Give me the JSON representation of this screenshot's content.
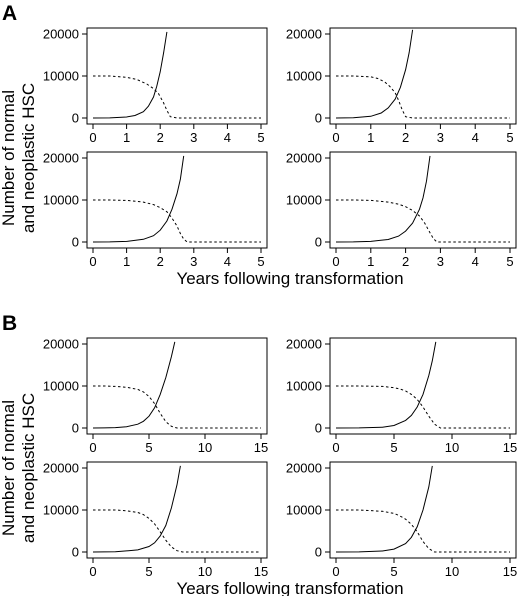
{
  "figure": {
    "panels": [
      {
        "letter": "A",
        "ylabel_lines": [
          "Number of normal",
          "and neoplastic HSC"
        ],
        "xlabel": "Years following transformation"
      },
      {
        "letter": "B",
        "ylabel_lines": [
          "Number of normal",
          "and neoplastic HSC"
        ],
        "xlabel": "Years following transformation"
      }
    ]
  },
  "chart_data": [
    {
      "type": "line",
      "group": "A",
      "xlim": [
        0,
        5
      ],
      "ylim": [
        0,
        20000
      ],
      "x_ticks": [
        0,
        1,
        2,
        3,
        4,
        5
      ],
      "y_ticks": [
        0,
        10000,
        20000
      ],
      "series": [
        {
          "style": "solid",
          "x": [
            0,
            0.5,
            1,
            1.25,
            1.5,
            1.65,
            1.8,
            1.9,
            2.0,
            2.1,
            2.2
          ],
          "y": [
            0,
            30,
            250,
            600,
            1500,
            2800,
            5000,
            7600,
            11000,
            15500,
            20500
          ]
        },
        {
          "style": "dashed",
          "x": [
            0,
            0.5,
            1.0,
            1.3,
            1.6,
            1.8,
            1.95,
            2.1,
            2.2,
            2.3,
            2.5,
            5
          ],
          "y": [
            10000,
            10000,
            9700,
            9200,
            8100,
            7000,
            5800,
            3600,
            1800,
            300,
            0,
            0
          ]
        }
      ]
    },
    {
      "type": "line",
      "group": "A",
      "xlim": [
        0,
        5
      ],
      "ylim": [
        0,
        20000
      ],
      "x_ticks": [
        0,
        1,
        2,
        3,
        4,
        5
      ],
      "y_ticks": [
        0,
        10000,
        20000
      ],
      "series": [
        {
          "style": "solid",
          "x": [
            0,
            0.5,
            1,
            1.3,
            1.5,
            1.7,
            1.85,
            2.0,
            2.1,
            2.2
          ],
          "y": [
            0,
            50,
            400,
            1200,
            2400,
            4500,
            7300,
            11500,
            15500,
            21000
          ]
        },
        {
          "style": "dashed",
          "x": [
            0,
            0.5,
            1.0,
            1.2,
            1.4,
            1.55,
            1.7,
            1.8,
            1.9,
            2.0,
            2.2,
            5
          ],
          "y": [
            10000,
            10000,
            9800,
            9400,
            8600,
            7500,
            6000,
            4200,
            2000,
            300,
            0,
            0
          ]
        }
      ]
    },
    {
      "type": "line",
      "group": "A",
      "xlim": [
        0,
        5
      ],
      "ylim": [
        0,
        20000
      ],
      "x_ticks": [
        0,
        1,
        2,
        3,
        4,
        5
      ],
      "y_ticks": [
        0,
        10000,
        20000
      ],
      "series": [
        {
          "style": "solid",
          "x": [
            0,
            0.5,
            1,
            1.5,
            1.8,
            2.0,
            2.2,
            2.35,
            2.5,
            2.6,
            2.7
          ],
          "y": [
            0,
            20,
            150,
            650,
            1500,
            2800,
            5000,
            7800,
            11500,
            15000,
            20500
          ]
        },
        {
          "style": "dashed",
          "x": [
            0,
            0.5,
            1.0,
            1.5,
            1.8,
            2.0,
            2.2,
            2.35,
            2.5,
            2.6,
            2.7,
            2.8,
            5
          ],
          "y": [
            10000,
            10000,
            9900,
            9500,
            8900,
            8200,
            7200,
            5700,
            3800,
            2000,
            700,
            0,
            0
          ]
        }
      ]
    },
    {
      "type": "line",
      "group": "A",
      "xlim": [
        0,
        5
      ],
      "ylim": [
        0,
        20000
      ],
      "x_ticks": [
        0,
        1,
        2,
        3,
        4,
        5
      ],
      "y_ticks": [
        0,
        10000,
        20000
      ],
      "series": [
        {
          "style": "solid",
          "x": [
            0,
            0.5,
            1,
            1.5,
            1.8,
            2.0,
            2.2,
            2.4,
            2.5,
            2.6,
            2.7
          ],
          "y": [
            0,
            20,
            150,
            600,
            1400,
            2600,
            4500,
            7800,
            10500,
            14500,
            20500
          ]
        },
        {
          "style": "dashed",
          "x": [
            0,
            0.5,
            1.0,
            1.5,
            1.8,
            2.0,
            2.2,
            2.4,
            2.55,
            2.7,
            2.8,
            2.9,
            5
          ],
          "y": [
            10000,
            10000,
            9900,
            9500,
            9000,
            8400,
            7500,
            6200,
            4500,
            2200,
            800,
            0,
            0
          ]
        }
      ]
    },
    {
      "type": "line",
      "group": "B",
      "xlim": [
        0,
        15
      ],
      "ylim": [
        0,
        20000
      ],
      "x_ticks": [
        0,
        5,
        10,
        15
      ],
      "y_ticks": [
        0,
        10000,
        20000
      ],
      "series": [
        {
          "style": "solid",
          "x": [
            0,
            1,
            2,
            3,
            4,
            4.5,
            5,
            5.5,
            6,
            6.5,
            7,
            7.3
          ],
          "y": [
            0,
            20,
            100,
            300,
            900,
            1600,
            2800,
            4800,
            8000,
            12000,
            17000,
            20500
          ]
        },
        {
          "style": "dashed",
          "x": [
            0,
            1,
            2,
            3,
            4,
            4.5,
            5,
            5.5,
            6,
            6.5,
            7,
            7.5,
            15
          ],
          "y": [
            10000,
            10000,
            9900,
            9700,
            9200,
            8600,
            7500,
            5800,
            3500,
            1500,
            400,
            0,
            0
          ]
        }
      ]
    },
    {
      "type": "line",
      "group": "B",
      "xlim": [
        0,
        15
      ],
      "ylim": [
        0,
        20000
      ],
      "x_ticks": [
        0,
        5,
        10,
        15
      ],
      "y_ticks": [
        0,
        10000,
        20000
      ],
      "series": [
        {
          "style": "solid",
          "x": [
            0,
            2,
            4,
            5,
            6,
            6.5,
            7,
            7.5,
            8,
            8.3,
            8.6
          ],
          "y": [
            0,
            30,
            200,
            600,
            1800,
            3000,
            5000,
            8000,
            12500,
            16000,
            20500
          ]
        },
        {
          "style": "dashed",
          "x": [
            0,
            2,
            4,
            5,
            5.5,
            6,
            6.5,
            7,
            7.5,
            8,
            8.5,
            9,
            15
          ],
          "y": [
            10000,
            10000,
            9900,
            9600,
            9300,
            8800,
            8000,
            6800,
            5000,
            2800,
            900,
            0,
            0
          ]
        }
      ]
    },
    {
      "type": "line",
      "group": "B",
      "xlim": [
        0,
        15
      ],
      "ylim": [
        0,
        20000
      ],
      "x_ticks": [
        0,
        5,
        10,
        15
      ],
      "y_ticks": [
        0,
        10000,
        20000
      ],
      "series": [
        {
          "style": "solid",
          "x": [
            0,
            2,
            4,
            5,
            5.5,
            6,
            6.5,
            7,
            7.5,
            7.8
          ],
          "y": [
            0,
            40,
            500,
            1300,
            2200,
            3800,
            6300,
            10500,
            16000,
            20500
          ]
        },
        {
          "style": "dashed",
          "x": [
            0,
            2,
            3,
            4,
            4.5,
            5,
            5.5,
            6,
            6.5,
            7,
            7.5,
            8,
            15
          ],
          "y": [
            10000,
            10000,
            9800,
            9400,
            8900,
            8000,
            6700,
            4800,
            2800,
            1200,
            300,
            0,
            0
          ]
        }
      ]
    },
    {
      "type": "line",
      "group": "B",
      "xlim": [
        0,
        15
      ],
      "ylim": [
        0,
        20000
      ],
      "x_ticks": [
        0,
        5,
        10,
        15
      ],
      "y_ticks": [
        0,
        10000,
        20000
      ],
      "series": [
        {
          "style": "solid",
          "x": [
            0,
            2,
            4,
            5,
            6,
            6.5,
            7,
            7.5,
            8,
            8.3
          ],
          "y": [
            0,
            30,
            250,
            700,
            2000,
            3500,
            6000,
            10000,
            15500,
            20500
          ]
        },
        {
          "style": "dashed",
          "x": [
            0,
            2,
            4,
            5,
            5.5,
            6,
            6.5,
            7,
            7.5,
            8,
            8.5,
            15
          ],
          "y": [
            10000,
            10000,
            9700,
            9200,
            8600,
            7800,
            6600,
            4800,
            2500,
            800,
            0,
            0
          ]
        }
      ]
    }
  ]
}
